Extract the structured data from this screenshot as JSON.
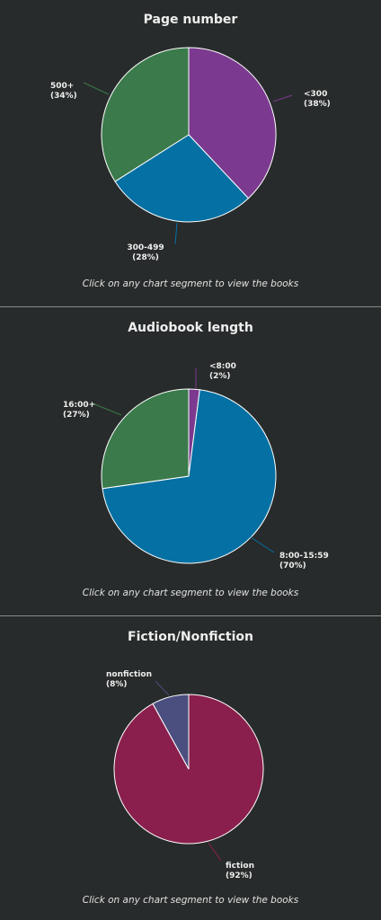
{
  "caption": "Click on any chart segment to view the books",
  "colors": {
    "background": "#282b2b",
    "divider": "#8a8a8a",
    "slice_border": "#ffffff"
  },
  "chart_data": [
    {
      "type": "pie",
      "title": "Page number",
      "series": [
        {
          "name": "<300",
          "value": 38,
          "value_label": "(38%)",
          "color": "#7b3a8f"
        },
        {
          "name": "300-499",
          "value": 28,
          "value_label": "(28%)",
          "color": "#0470a3"
        },
        {
          "name": "500+",
          "value": 34,
          "value_label": "(34%)",
          "color": "#3a7a4b"
        }
      ]
    },
    {
      "type": "pie",
      "title": "Audiobook length",
      "series": [
        {
          "name": "<8:00",
          "value": 2,
          "value_label": "(2%)",
          "color": "#7b3a8f"
        },
        {
          "name": "8:00-15:59",
          "value": 70,
          "value_label": "(70%)",
          "color": "#0470a3"
        },
        {
          "name": "16:00+",
          "value": 27,
          "value_label": "(27%)",
          "color": "#3a7a4b"
        }
      ]
    },
    {
      "type": "pie",
      "title": "Fiction/Nonfiction",
      "series": [
        {
          "name": "fiction",
          "value": 92,
          "value_label": "(92%)",
          "color": "#8a1f4d"
        },
        {
          "name": "nonfiction",
          "value": 8,
          "value_label": "(8%)",
          "color": "#4a4f7f"
        }
      ]
    }
  ]
}
